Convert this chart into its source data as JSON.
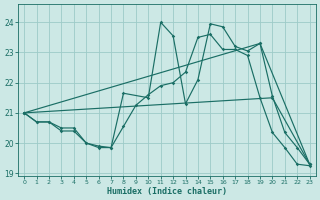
{
  "xlabel": "Humidex (Indice chaleur)",
  "xlim": [
    -0.5,
    23.5
  ],
  "ylim": [
    18.9,
    24.6
  ],
  "yticks": [
    19,
    20,
    21,
    22,
    23,
    24
  ],
  "xticks": [
    0,
    1,
    2,
    3,
    4,
    5,
    6,
    7,
    8,
    9,
    10,
    11,
    12,
    13,
    14,
    15,
    16,
    17,
    18,
    19,
    20,
    21,
    22,
    23
  ],
  "bg_color": "#cce8e5",
  "grid_color": "#9dcbc8",
  "line_color": "#1a6e65",
  "line1_x": [
    0,
    1,
    2,
    3,
    4,
    5,
    6,
    7,
    8,
    10,
    11,
    12,
    13,
    14,
    15,
    16,
    17,
    18,
    19,
    20,
    21,
    22,
    23
  ],
  "line1_y": [
    21.0,
    20.7,
    20.7,
    20.5,
    20.5,
    20.0,
    19.9,
    19.85,
    21.65,
    21.5,
    24.0,
    23.55,
    21.3,
    22.1,
    23.95,
    23.85,
    23.2,
    23.05,
    23.3,
    21.55,
    20.35,
    19.85,
    19.3
  ],
  "line2_x": [
    0,
    1,
    2,
    3,
    4,
    5,
    6,
    7,
    8,
    9,
    10,
    11,
    12,
    13,
    14,
    15,
    16,
    17,
    18,
    19,
    20,
    21,
    22,
    23
  ],
  "line2_y": [
    21.0,
    20.7,
    20.7,
    20.4,
    20.4,
    20.0,
    19.85,
    19.85,
    20.55,
    21.25,
    21.6,
    21.9,
    22.0,
    22.35,
    23.5,
    23.6,
    23.1,
    23.1,
    22.9,
    21.5,
    20.35,
    19.85,
    19.3,
    19.25
  ],
  "line3_x": [
    0,
    19,
    23
  ],
  "line3_y": [
    21.0,
    23.3,
    19.3
  ],
  "line4_x": [
    0,
    20,
    23
  ],
  "line4_y": [
    21.0,
    21.5,
    19.3
  ]
}
